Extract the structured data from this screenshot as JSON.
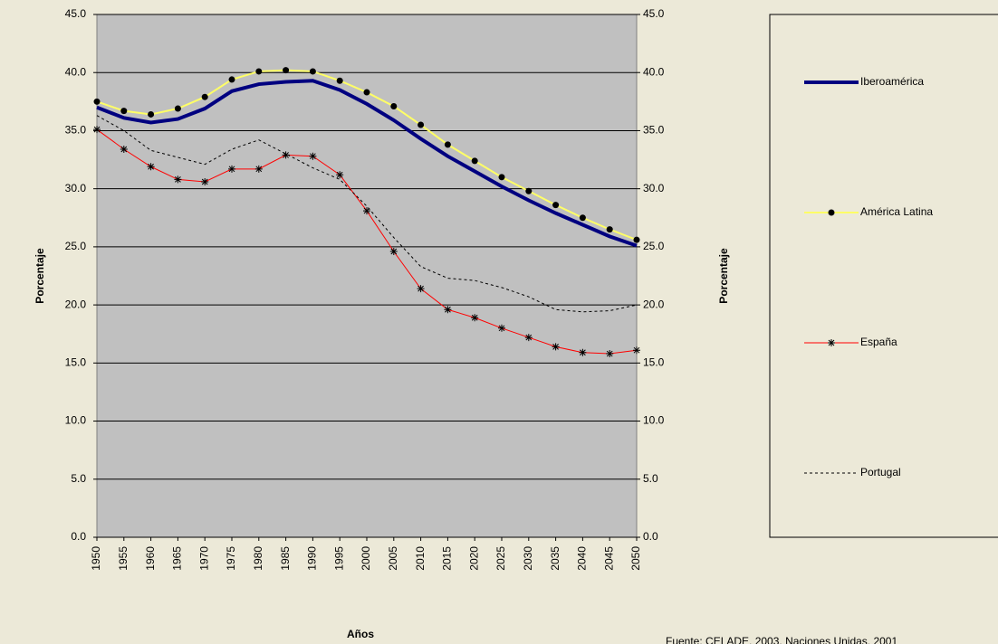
{
  "chart_data": {
    "type": "line",
    "x": [
      1950,
      1955,
      1960,
      1965,
      1970,
      1975,
      1980,
      1985,
      1990,
      1995,
      2000,
      2005,
      2010,
      2015,
      2020,
      2025,
      2030,
      2035,
      2040,
      2045,
      2050
    ],
    "xlim": [
      1950,
      2050
    ],
    "xticks": [
      1950,
      1955,
      1960,
      1965,
      1970,
      1975,
      1980,
      1985,
      1990,
      1995,
      2000,
      2005,
      2010,
      2015,
      2020,
      2025,
      2030,
      2035,
      2040,
      2045,
      2050
    ],
    "ylim": [
      0,
      45
    ],
    "yticks": [
      {
        "value": 0,
        "label": "0.0"
      },
      {
        "value": 5,
        "label": "5.0"
      },
      {
        "value": 10,
        "label": "10.0"
      },
      {
        "value": 15,
        "label": "15.0"
      },
      {
        "value": 20,
        "label": "20.0"
      },
      {
        "value": 25,
        "label": "25.0"
      },
      {
        "value": 30,
        "label": "30.0"
      },
      {
        "value": 35,
        "label": "35.0"
      },
      {
        "value": 40,
        "label": "40.0"
      },
      {
        "value": 45,
        "label": "45.0"
      }
    ],
    "y2lim": [
      0,
      45
    ],
    "y2ticks": [
      {
        "value": 0,
        "label": "0.0"
      },
      {
        "value": 5,
        "label": "5.0"
      },
      {
        "value": 10,
        "label": "10.0"
      },
      {
        "value": 15,
        "label": "15.0"
      },
      {
        "value": 20,
        "label": "20.0"
      },
      {
        "value": 25,
        "label": "25.0"
      },
      {
        "value": 30,
        "label": "30.0"
      },
      {
        "value": 35,
        "label": "35.0"
      },
      {
        "value": 40,
        "label": "40.0"
      },
      {
        "value": 45,
        "label": "45.0"
      }
    ],
    "xlabel": "Años",
    "ylabel": "Porcentaje",
    "y2label": "Porcentaje",
    "source": "Fuente: CELADE, 2003. Naciones Unidas, 2001",
    "grid": true,
    "legend": "right",
    "series": [
      {
        "name": "Iberoamérica",
        "color": "#000080",
        "line_width": 4,
        "marker": null,
        "dash": false,
        "values": [
          37.0,
          36.1,
          35.7,
          36.0,
          36.9,
          38.4,
          39.0,
          39.2,
          39.3,
          38.5,
          37.3,
          35.9,
          34.3,
          32.8,
          31.5,
          30.2,
          29.0,
          27.9,
          26.9,
          25.9,
          25.1
        ]
      },
      {
        "name": "América Latina",
        "color": "#ffff66",
        "line_width": 2,
        "marker": "circle",
        "dash": false,
        "values": [
          37.5,
          36.7,
          36.4,
          36.9,
          37.9,
          39.4,
          40.1,
          40.2,
          40.1,
          39.3,
          38.3,
          37.1,
          35.5,
          33.8,
          32.4,
          31.0,
          29.8,
          28.6,
          27.5,
          26.5,
          25.6
        ]
      },
      {
        "name": "España",
        "color": "#ff0000",
        "line_width": 1,
        "marker": "star",
        "dash": false,
        "values": [
          35.1,
          33.4,
          31.9,
          30.8,
          30.6,
          31.7,
          31.7,
          32.9,
          32.8,
          31.2,
          28.1,
          24.6,
          21.4,
          19.6,
          18.9,
          18.0,
          17.2,
          16.4,
          15.9,
          15.8,
          16.1
        ]
      },
      {
        "name": "Portugal",
        "color": "#000000",
        "line_width": 1,
        "marker": null,
        "dash": true,
        "values": [
          36.3,
          35.0,
          33.3,
          32.7,
          32.1,
          33.4,
          34.2,
          33.0,
          31.8,
          30.8,
          28.5,
          25.8,
          23.3,
          22.3,
          22.1,
          21.5,
          20.7,
          19.6,
          19.4,
          19.5,
          20.0
        ]
      }
    ]
  }
}
